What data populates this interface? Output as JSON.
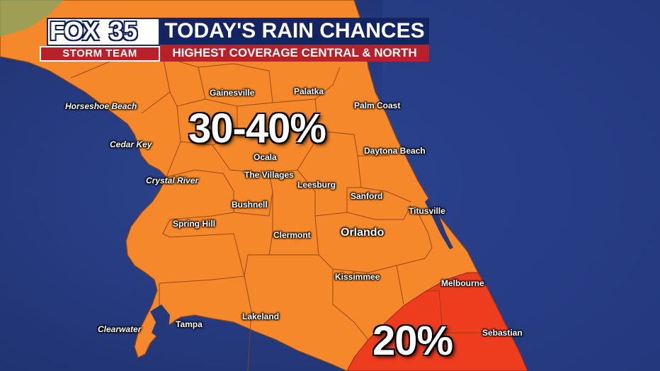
{
  "header": {
    "logo_main": "FOX",
    "logo_number": "35",
    "logo_sub": "STORM TEAM",
    "title": "TODAY'S RAIN CHANCES",
    "subtitle": "HIGHEST COVERAGE CENTRAL & NORTH"
  },
  "zones": [
    {
      "label": "30-40%",
      "color": "#f5882a"
    },
    {
      "label": "20%",
      "color": "#ee3c1e"
    }
  ],
  "cities": [
    {
      "name": "Gainesville",
      "style": "normal"
    },
    {
      "name": "Palatka",
      "style": "normal"
    },
    {
      "name": "Horseshoe Beach",
      "style": "italic"
    },
    {
      "name": "Palm Coast",
      "style": "normal"
    },
    {
      "name": "Cedar Key",
      "style": "italic"
    },
    {
      "name": "Ocala",
      "style": "normal"
    },
    {
      "name": "Daytona Beach",
      "style": "normal"
    },
    {
      "name": "The Villages",
      "style": "normal"
    },
    {
      "name": "Crystal River",
      "style": "italic"
    },
    {
      "name": "Leesburg",
      "style": "normal"
    },
    {
      "name": "Sanford",
      "style": "normal"
    },
    {
      "name": "Bushnell",
      "style": "normal"
    },
    {
      "name": "Titusville",
      "style": "normal"
    },
    {
      "name": "Spring Hill",
      "style": "normal"
    },
    {
      "name": "Orlando",
      "style": "big"
    },
    {
      "name": "Clermont",
      "style": "normal"
    },
    {
      "name": "Kissimmee",
      "style": "normal"
    },
    {
      "name": "Melbourne",
      "style": "normal"
    },
    {
      "name": "Lakeland",
      "style": "normal"
    },
    {
      "name": "Tampa",
      "style": "normal"
    },
    {
      "name": "Clearwater",
      "style": "italic"
    },
    {
      "name": "Sebastian",
      "style": "normal"
    }
  ],
  "colors": {
    "water": "#24387a",
    "land_outline": "#7a3a10",
    "header_blue": "#132463",
    "header_red": "#b8202a"
  }
}
